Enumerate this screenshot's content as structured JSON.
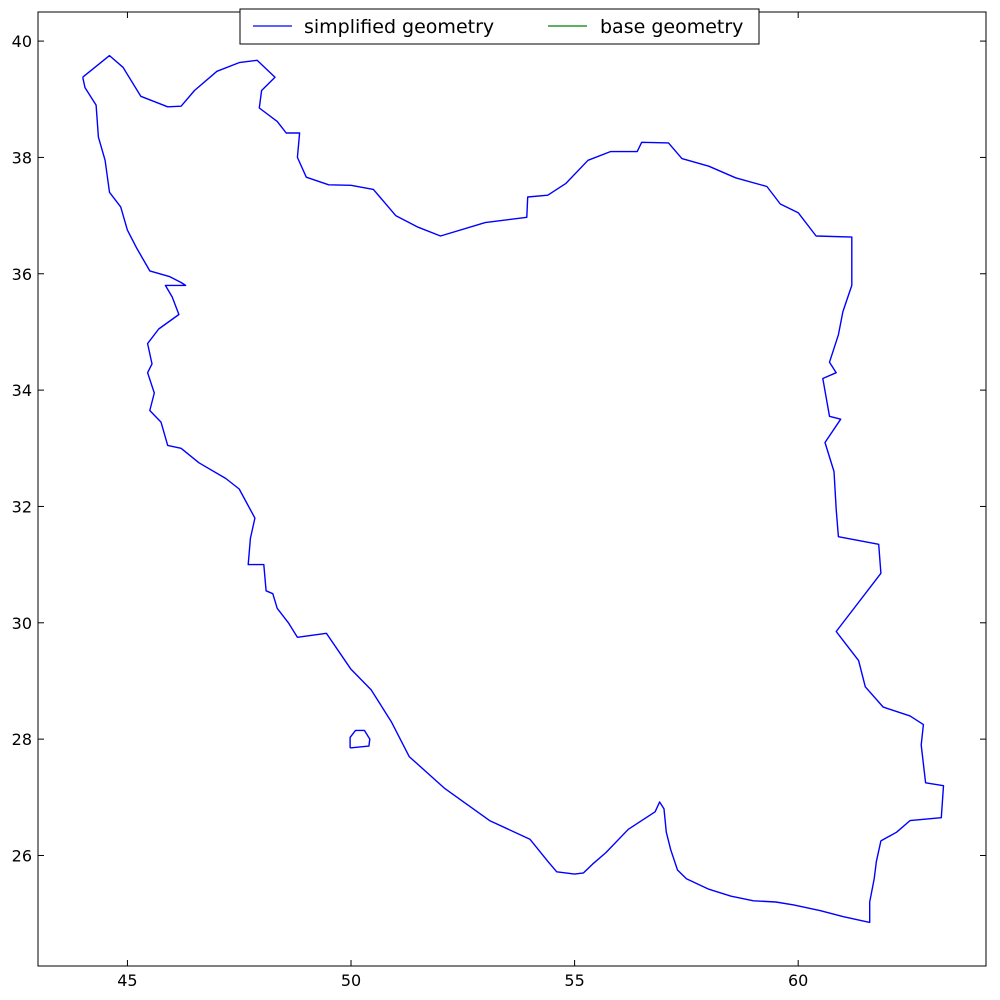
{
  "chart_data": {
    "type": "line",
    "title": "",
    "xlabel": "",
    "ylabel": "",
    "xlim": [
      43,
      64.2
    ],
    "ylim": [
      24.1,
      40.5
    ],
    "x_ticks": [
      45,
      50,
      55,
      60
    ],
    "y_ticks": [
      26,
      28,
      30,
      32,
      34,
      36,
      38,
      40
    ],
    "x_tick_labels": [
      "45",
      "50",
      "55",
      "60"
    ],
    "y_tick_labels": [
      "26",
      "28",
      "30",
      "32",
      "34",
      "36",
      "38",
      "40"
    ],
    "grid": false,
    "legend": {
      "position": "upper-center",
      "columns": 2
    },
    "colors": {
      "simplified": "#0000ff",
      "base": "#008000"
    },
    "series": [
      {
        "name": "simplified geometry",
        "color": "#0000ff",
        "rings": [
          [
            [
              44.0,
              39.38
            ],
            [
              44.6,
              39.75
            ],
            [
              44.9,
              39.55
            ],
            [
              45.3,
              39.05
            ],
            [
              45.9,
              38.87
            ],
            [
              46.2,
              38.88
            ],
            [
              46.5,
              39.15
            ],
            [
              47.0,
              39.48
            ],
            [
              47.5,
              39.63
            ],
            [
              47.9,
              39.67
            ],
            [
              48.3,
              39.38
            ],
            [
              48.0,
              39.15
            ],
            [
              47.95,
              38.85
            ],
            [
              48.35,
              38.62
            ],
            [
              48.55,
              38.42
            ],
            [
              48.85,
              38.42
            ],
            [
              48.8,
              38.0
            ],
            [
              49.0,
              37.66
            ],
            [
              49.5,
              37.53
            ],
            [
              50.0,
              37.52
            ],
            [
              50.5,
              37.45
            ],
            [
              51.0,
              37.0
            ],
            [
              51.5,
              36.8
            ],
            [
              52.0,
              36.65
            ],
            [
              53.0,
              36.88
            ],
            [
              53.93,
              36.97
            ],
            [
              53.95,
              37.32
            ],
            [
              54.4,
              37.35
            ],
            [
              54.8,
              37.55
            ],
            [
              55.3,
              37.95
            ],
            [
              55.8,
              38.1
            ],
            [
              56.4,
              38.1
            ],
            [
              56.5,
              38.26
            ],
            [
              57.1,
              38.25
            ],
            [
              57.4,
              37.98
            ],
            [
              58.0,
              37.85
            ],
            [
              58.6,
              37.65
            ],
            [
              59.3,
              37.5
            ],
            [
              59.6,
              37.2
            ],
            [
              60.0,
              37.05
            ],
            [
              60.4,
              36.65
            ],
            [
              61.2,
              36.63
            ],
            [
              61.2,
              35.8
            ],
            [
              61.0,
              35.35
            ],
            [
              60.9,
              34.95
            ],
            [
              60.7,
              34.48
            ],
            [
              60.85,
              34.3
            ],
            [
              60.55,
              34.2
            ],
            [
              60.7,
              33.55
            ],
            [
              60.95,
              33.5
            ],
            [
              60.6,
              33.1
            ],
            [
              60.8,
              32.6
            ],
            [
              60.85,
              31.95
            ],
            [
              60.9,
              31.48
            ],
            [
              61.8,
              31.35
            ],
            [
              61.85,
              30.85
            ],
            [
              60.85,
              29.85
            ],
            [
              61.35,
              29.35
            ],
            [
              61.5,
              28.9
            ],
            [
              61.9,
              28.55
            ],
            [
              62.5,
              28.4
            ],
            [
              62.8,
              28.25
            ],
            [
              62.75,
              27.9
            ],
            [
              62.85,
              27.25
            ],
            [
              63.25,
              27.2
            ],
            [
              63.2,
              26.65
            ],
            [
              62.5,
              26.6
            ],
            [
              62.2,
              26.4
            ],
            [
              61.85,
              26.25
            ],
            [
              61.75,
              25.9
            ],
            [
              61.7,
              25.6
            ],
            [
              61.6,
              25.2
            ],
            [
              61.6,
              24.85
            ],
            [
              61.0,
              24.95
            ],
            [
              60.5,
              25.05
            ],
            [
              59.9,
              25.15
            ],
            [
              59.5,
              25.2
            ],
            [
              59.0,
              25.22
            ],
            [
              58.5,
              25.3
            ],
            [
              58.0,
              25.42
            ],
            [
              57.5,
              25.6
            ],
            [
              57.3,
              25.75
            ],
            [
              57.15,
              26.1
            ],
            [
              57.05,
              26.4
            ],
            [
              57.0,
              26.8
            ],
            [
              56.9,
              26.92
            ],
            [
              56.8,
              26.75
            ],
            [
              56.5,
              26.6
            ],
            [
              56.2,
              26.45
            ],
            [
              55.7,
              26.05
            ],
            [
              55.4,
              25.85
            ],
            [
              55.2,
              25.7
            ],
            [
              55.0,
              25.68
            ],
            [
              54.6,
              25.72
            ],
            [
              54.4,
              25.9
            ],
            [
              54.0,
              26.28
            ],
            [
              53.1,
              26.6
            ],
            [
              52.1,
              27.15
            ],
            [
              51.3,
              27.7
            ],
            [
              50.9,
              28.3
            ],
            [
              50.45,
              28.85
            ],
            [
              50.0,
              29.2
            ],
            [
              49.45,
              29.82
            ],
            [
              48.8,
              29.75
            ],
            [
              48.6,
              30.0
            ],
            [
              48.35,
              30.25
            ],
            [
              48.25,
              30.5
            ],
            [
              48.1,
              30.55
            ],
            [
              48.05,
              31.0
            ],
            [
              47.7,
              31.0
            ],
            [
              47.75,
              31.45
            ],
            [
              47.85,
              31.8
            ],
            [
              47.5,
              32.3
            ],
            [
              47.2,
              32.48
            ],
            [
              46.6,
              32.75
            ],
            [
              46.2,
              33.0
            ],
            [
              45.9,
              33.05
            ],
            [
              45.75,
              33.45
            ],
            [
              45.5,
              33.65
            ],
            [
              45.6,
              33.95
            ],
            [
              45.45,
              34.3
            ],
            [
              45.55,
              34.45
            ],
            [
              45.45,
              34.8
            ],
            [
              45.7,
              35.05
            ],
            [
              46.15,
              35.3
            ],
            [
              46.0,
              35.6
            ],
            [
              45.85,
              35.8
            ],
            [
              46.3,
              35.8
            ],
            [
              46.2,
              35.85
            ],
            [
              45.95,
              35.95
            ],
            [
              45.5,
              36.05
            ],
            [
              45.2,
              36.45
            ],
            [
              45.0,
              36.75
            ],
            [
              44.85,
              37.15
            ],
            [
              44.6,
              37.4
            ],
            [
              44.5,
              37.95
            ],
            [
              44.35,
              38.35
            ],
            [
              44.3,
              38.9
            ],
            [
              44.05,
              39.2
            ],
            [
              44.0,
              39.38
            ]
          ],
          [
            [
              49.98,
              27.85
            ],
            [
              49.98,
              28.03
            ],
            [
              50.1,
              28.15
            ],
            [
              50.3,
              28.15
            ],
            [
              50.42,
              28.0
            ],
            [
              50.4,
              27.88
            ],
            [
              49.98,
              27.85
            ]
          ]
        ]
      },
      {
        "name": "base geometry",
        "color": "#008000",
        "rings": []
      }
    ]
  }
}
